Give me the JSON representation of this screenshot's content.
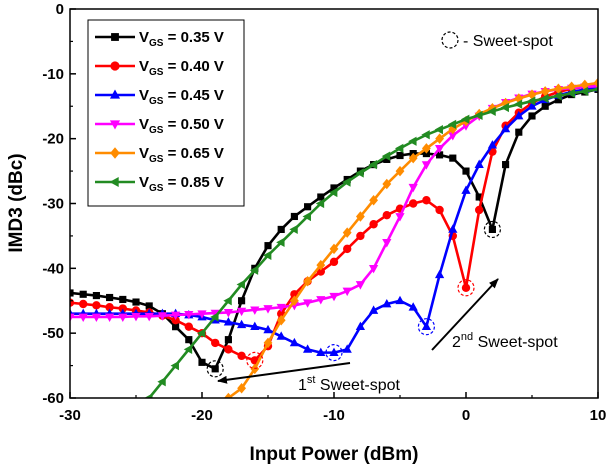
{
  "chart_data": {
    "type": "line",
    "title": "",
    "xlabel": "Input Power (dBm)",
    "ylabel": "IMD3 (dBc)",
    "xlim": [
      -30,
      10
    ],
    "ylim": [
      -60,
      0
    ],
    "xticks": [
      -30,
      -20,
      -10,
      0,
      10
    ],
    "xtick_labels": [
      "-30",
      "-20",
      "-10",
      "0",
      "10"
    ],
    "yticks": [
      0,
      -10,
      -20,
      -30,
      -40,
      -50,
      -60
    ],
    "ytick_labels": [
      "0",
      "-10",
      "-20",
      "-30",
      "-40",
      "-50",
      "-60"
    ],
    "grid": false,
    "legend_position": "top-left",
    "series": [
      {
        "name_prefix": "V",
        "name_sub": "GS",
        "name_suffix": " = 0.35 V",
        "color": "#000000",
        "marker": "square",
        "x": [
          -30,
          -29,
          -28,
          -27,
          -26,
          -25,
          -24,
          -23,
          -22,
          -21,
          -20,
          -19,
          -18,
          -17,
          -16,
          -15,
          -14,
          -13,
          -12,
          -11,
          -10,
          -9,
          -8,
          -7,
          -6,
          -5,
          -4,
          -3,
          -2,
          -1,
          0,
          1,
          2,
          3,
          4,
          5,
          6,
          7,
          8,
          9,
          10
        ],
        "y": [
          -43.8,
          -44,
          -44.2,
          -44.5,
          -44.8,
          -45.2,
          -45.8,
          -47,
          -49,
          -51,
          -54.5,
          -55.5,
          -51,
          -45,
          -40,
          -36.5,
          -34,
          -32,
          -30.5,
          -29,
          -27.6,
          -26.3,
          -25,
          -24,
          -23.2,
          -22.6,
          -22.3,
          -22.3,
          -22.5,
          -23,
          -25,
          -29,
          -34,
          -24,
          -19,
          -16.5,
          -15,
          -14,
          -13.2,
          -12.8,
          -12.4
        ]
      },
      {
        "name_prefix": "V",
        "name_sub": "GS",
        "name_suffix": " = 0.40 V",
        "color": "#ff0000",
        "marker": "circle",
        "x": [
          -30,
          -29,
          -28,
          -27,
          -26,
          -25,
          -24,
          -23,
          -22,
          -21,
          -20,
          -19,
          -18,
          -17,
          -16,
          -15,
          -14,
          -13,
          -12,
          -11,
          -10,
          -9,
          -8,
          -7,
          -6,
          -5,
          -4,
          -3,
          -2,
          -1,
          0,
          1,
          2,
          3,
          4,
          5,
          6,
          7,
          8,
          9,
          10
        ],
        "y": [
          -45.3,
          -45.5,
          -45.7,
          -46,
          -46.2,
          -46.5,
          -46.8,
          -47.3,
          -48,
          -49,
          -50,
          -51.5,
          -52.5,
          -53.5,
          -54.2,
          -52,
          -47,
          -44,
          -42,
          -40.5,
          -39,
          -37,
          -35,
          -33.2,
          -31.8,
          -30.8,
          -30,
          -29.5,
          -31,
          -35,
          -43,
          -31,
          -22,
          -18,
          -16,
          -14.5,
          -13.5,
          -12.8,
          -12.3,
          -12,
          -11.8
        ]
      },
      {
        "name_prefix": "V",
        "name_sub": "GS",
        "name_suffix": " = 0.45 V",
        "color": "#0000ff",
        "marker": "triangle-up",
        "x": [
          -30,
          -29,
          -28,
          -27,
          -26,
          -25,
          -24,
          -23,
          -22,
          -21,
          -20,
          -19,
          -18,
          -17,
          -16,
          -15,
          -14,
          -13,
          -12,
          -11,
          -10,
          -9,
          -8,
          -7,
          -6,
          -5,
          -4,
          -3,
          -2,
          -1,
          0,
          1,
          2,
          3,
          4,
          5,
          6,
          7,
          8,
          9,
          10
        ],
        "y": [
          -47,
          -47,
          -47,
          -47,
          -47,
          -47,
          -47,
          -47,
          -47,
          -47.2,
          -47.5,
          -48,
          -48.3,
          -48.7,
          -49,
          -49.5,
          -50.5,
          -51.5,
          -52.5,
          -53,
          -53,
          -52.5,
          -49,
          -46.5,
          -45.5,
          -45,
          -46,
          -49,
          -41,
          -34,
          -28,
          -24,
          -21,
          -18.5,
          -16.5,
          -15,
          -14,
          -13.3,
          -12.8,
          -12.4,
          -12.2
        ]
      },
      {
        "name_prefix": "V",
        "name_sub": "GS",
        "name_suffix": " = 0.50 V",
        "color": "#ff00ff",
        "marker": "triangle-down",
        "x": [
          -30,
          -29,
          -28,
          -27,
          -26,
          -25,
          -24,
          -23,
          -22,
          -21,
          -20,
          -19,
          -18,
          -17,
          -16,
          -15,
          -14,
          -13,
          -12,
          -11,
          -10,
          -9,
          -8,
          -7,
          -6,
          -5,
          -4,
          -3,
          -2,
          -1,
          0,
          1,
          2,
          3,
          4,
          5,
          6,
          7,
          8,
          9,
          10
        ],
        "y": [
          -47.5,
          -47.5,
          -47.5,
          -47.5,
          -47.5,
          -47.4,
          -47.4,
          -47.3,
          -47.2,
          -47.1,
          -47,
          -46.9,
          -46.8,
          -46.6,
          -46.4,
          -46.2,
          -46,
          -45.7,
          -45.3,
          -44.8,
          -44.3,
          -43.5,
          -42.5,
          -40,
          -36,
          -32,
          -27.5,
          -24,
          -21.5,
          -19.5,
          -18,
          -16.5,
          -15.3,
          -14.4,
          -13.7,
          -13.1,
          -12.7,
          -12.4,
          -12.2,
          -12,
          -11.9
        ]
      },
      {
        "name_prefix": "V",
        "name_sub": "GS",
        "name_suffix": " = 0.65 V",
        "color": "#ff8c00",
        "marker": "diamond",
        "x": [
          -18,
          -17,
          -16,
          -15,
          -14,
          -13,
          -12,
          -11,
          -10,
          -9,
          -8,
          -7,
          -6,
          -5,
          -4,
          -3,
          -2,
          -1,
          0,
          1,
          2,
          3,
          4,
          5,
          6,
          7,
          8,
          9,
          10
        ],
        "y": [
          -60,
          -58.5,
          -55.5,
          -51.5,
          -48,
          -45,
          -42,
          -39.5,
          -37,
          -34.5,
          -32,
          -29.5,
          -27,
          -25,
          -23,
          -21.5,
          -20,
          -18.5,
          -17.3,
          -16.2,
          -15.3,
          -14.5,
          -13.8,
          -13.2,
          -12.7,
          -12.3,
          -12,
          -11.7,
          -11.4
        ]
      },
      {
        "name_prefix": "V",
        "name_sub": "GS",
        "name_suffix": " = 0.85 V",
        "color": "#228b22",
        "marker": "triangle-left",
        "x": [
          -24,
          -23,
          -22,
          -21,
          -20,
          -19,
          -18,
          -17,
          -16,
          -15,
          -14,
          -13,
          -12,
          -11,
          -10,
          -9,
          -8,
          -7,
          -6,
          -5,
          -4,
          -3,
          -2,
          -1,
          0,
          1,
          2,
          3,
          4,
          5,
          6,
          7,
          8,
          9,
          10
        ],
        "y": [
          -60,
          -57.5,
          -55,
          -52.5,
          -50,
          -47.5,
          -45,
          -42.5,
          -40.3,
          -38,
          -36,
          -34,
          -32,
          -30,
          -28.3,
          -26.7,
          -25.3,
          -24,
          -22.7,
          -21.5,
          -20.4,
          -19.4,
          -18.6,
          -17.8,
          -17,
          -16.4,
          -15.8,
          -15.2,
          -14.7,
          -14.2,
          -13.8,
          -13.4,
          -13,
          -12.7,
          -12.4
        ]
      }
    ],
    "sweet_spots": [
      {
        "x": -19,
        "y": -55.5,
        "color": "#000000"
      },
      {
        "x": -16,
        "y": -54.2,
        "color": "#ff0000"
      },
      {
        "x": -10,
        "y": -53,
        "color": "#0000ff"
      },
      {
        "x": -3,
        "y": -49,
        "color": "#0000ff"
      },
      {
        "x": 0,
        "y": -43,
        "color": "#ff0000"
      },
      {
        "x": 2,
        "y": -34,
        "color": "#000000"
      }
    ],
    "annotations": {
      "legend_sweet_spot": "- Sweet-spot",
      "first_sweet_spot_num": "1",
      "first_sweet_spot_sup": "st",
      "first_sweet_spot_label": " Sweet-spot",
      "second_sweet_spot_num": "2",
      "second_sweet_spot_sup": "nd",
      "second_sweet_spot_label": " Sweet-spot"
    }
  }
}
